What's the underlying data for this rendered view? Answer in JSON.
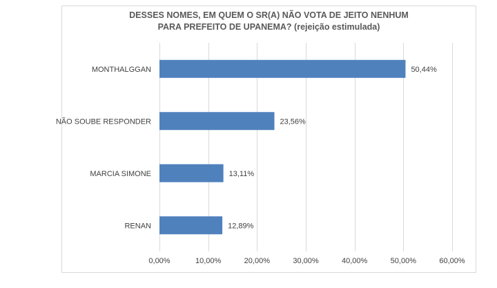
{
  "chart_data": {
    "type": "bar",
    "orientation": "horizontal",
    "title_lines": [
      "DESSES NOMES, EM QUEM O SR(A) NÃO VOTA DE JEITO NENHUM",
      "PARA PREFEITO DE UPANEMA? (rejeição estimulada)"
    ],
    "categories": [
      "MONTHALGGAN",
      "NÃO SOUBE RESPONDER",
      "MARCIA SIMONE",
      "RENAN"
    ],
    "values": [
      50.44,
      23.56,
      13.11,
      12.89
    ],
    "data_labels": [
      "50,44%",
      "23,56%",
      "13,11%",
      "12,89%"
    ],
    "xlim": [
      0,
      60
    ],
    "x_ticks": [
      0,
      10,
      20,
      30,
      40,
      50,
      60
    ],
    "x_tick_labels": [
      "0,00%",
      "10,00%",
      "20,00%",
      "30,00%",
      "40,00%",
      "50,00%",
      "60,00%"
    ],
    "grid": true,
    "bar_color": "#4f81bd",
    "gridline_color": "#d9d9d9"
  }
}
